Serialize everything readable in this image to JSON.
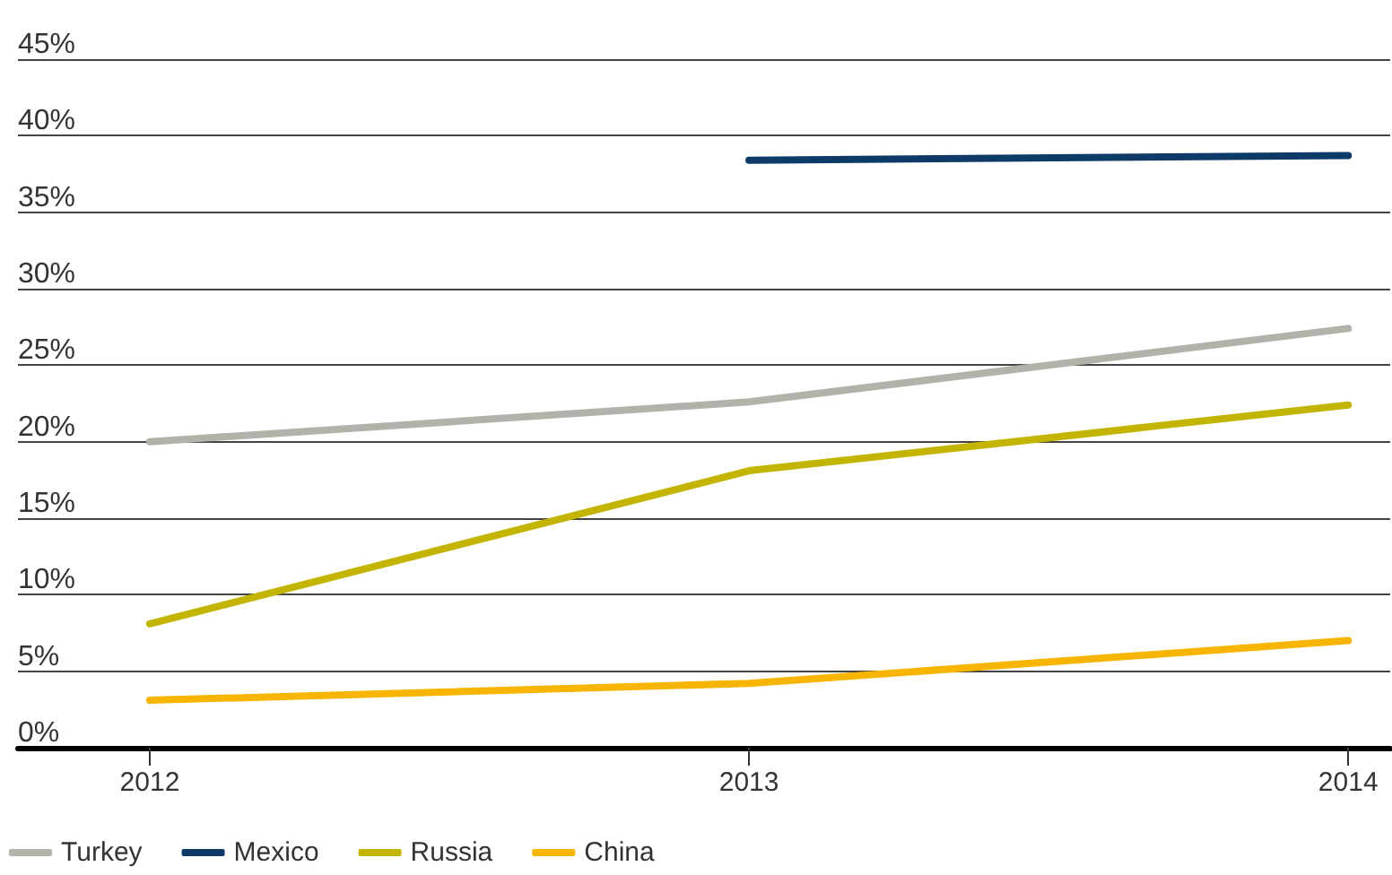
{
  "chart_data": {
    "type": "line",
    "x": [
      2012,
      2013,
      2014
    ],
    "xlim": [
      2011.78,
      2014.07
    ],
    "xticks": [
      2012,
      2013,
      2014
    ],
    "ylim": [
      0,
      45
    ],
    "yticks": [
      {
        "value": 0,
        "label": "0%"
      },
      {
        "value": 5,
        "label": "5%"
      },
      {
        "value": 10,
        "label": "10%"
      },
      {
        "value": 15,
        "label": "15%"
      },
      {
        "value": 20,
        "label": "20%"
      },
      {
        "value": 25,
        "label": "25%"
      },
      {
        "value": 30,
        "label": "30%"
      },
      {
        "value": 35,
        "label": "35%"
      },
      {
        "value": 40,
        "label": "40%"
      },
      {
        "value": 45,
        "label": "45%"
      }
    ],
    "grid": "y",
    "legend": "bottom left",
    "marker": "none",
    "line_style": "solid",
    "series": [
      {
        "name": "Turkey",
        "color": "#b2b2aa",
        "values": [
          20.0,
          22.6,
          27.4
        ]
      },
      {
        "name": "Mexico",
        "color": "#0d3a66",
        "values": [
          null,
          38.4,
          38.7
        ]
      },
      {
        "name": "Russia",
        "color": "#c3b400",
        "values": [
          8.1,
          18.1,
          22.4
        ]
      },
      {
        "name": "China",
        "color": "#f7b500",
        "values": [
          3.1,
          4.2,
          7.0
        ]
      }
    ]
  }
}
